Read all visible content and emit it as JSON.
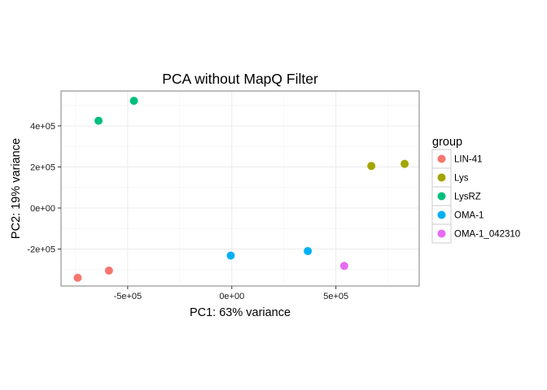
{
  "chart_data": {
    "type": "scatter",
    "title": "PCA without MapQ Filter",
    "xlabel": "PC1: 63% variance",
    "ylabel": "PC2: 19% variance",
    "xlim": [
      -820000,
      900000
    ],
    "ylim": [
      -380000,
      570000
    ],
    "x_ticks": [
      {
        "value": -500000,
        "label": "-5e+05"
      },
      {
        "value": 0,
        "label": "0e+00"
      },
      {
        "value": 500000,
        "label": "5e+05"
      }
    ],
    "y_ticks": [
      {
        "value": -200000,
        "label": "-2e+05"
      },
      {
        "value": 0,
        "label": "0e+00"
      },
      {
        "value": 200000,
        "label": "2e+05"
      },
      {
        "value": 400000,
        "label": "4e+05"
      }
    ],
    "grid": true,
    "legend": {
      "title": "group",
      "position": "right",
      "entries": [
        {
          "name": "LIN-41",
          "color": "#F8766D"
        },
        {
          "name": "Lys",
          "color": "#A3A500"
        },
        {
          "name": "LysRZ",
          "color": "#00BF7D"
        },
        {
          "name": "OMA-1",
          "color": "#00B0F6"
        },
        {
          "name": "OMA-1_042310",
          "color": "#E76BF3"
        }
      ]
    },
    "series": [
      {
        "name": "LIN-41",
        "points": [
          {
            "x": -740000,
            "y": -340000
          },
          {
            "x": -590000,
            "y": -305000
          }
        ]
      },
      {
        "name": "Lys",
        "points": [
          {
            "x": 670000,
            "y": 205000
          },
          {
            "x": 830000,
            "y": 215000
          }
        ]
      },
      {
        "name": "LysRZ",
        "points": [
          {
            "x": -640000,
            "y": 425000
          },
          {
            "x": -470000,
            "y": 522000
          }
        ]
      },
      {
        "name": "OMA-1",
        "points": [
          {
            "x": -5000,
            "y": -232000
          },
          {
            "x": 365000,
            "y": -210000
          }
        ]
      },
      {
        "name": "OMA-1_042310",
        "points": [
          {
            "x": 540000,
            "y": -282000
          }
        ]
      }
    ]
  }
}
